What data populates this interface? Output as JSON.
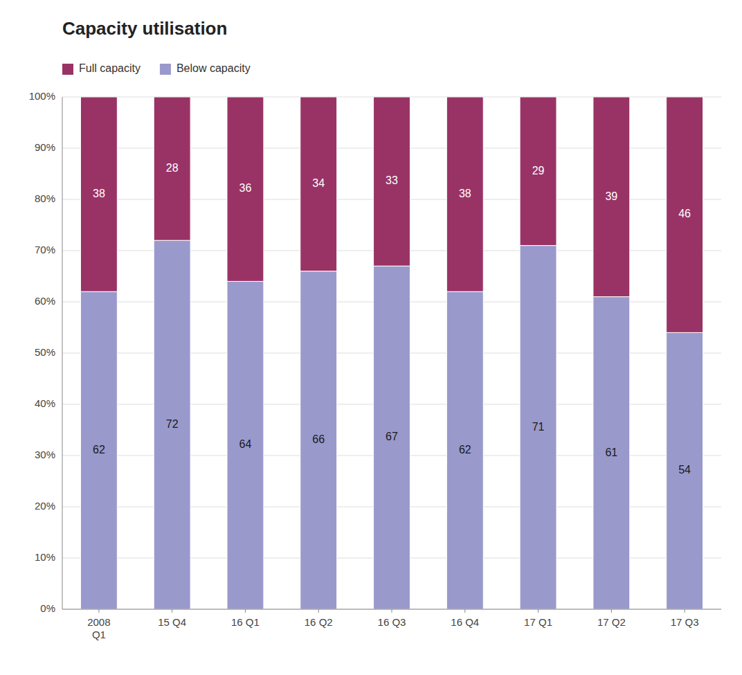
{
  "chart_data": {
    "type": "bar",
    "stacked": true,
    "title": "Capacity utilisation",
    "categories": [
      "2008\nQ1",
      "15 Q4",
      "16 Q1",
      "16 Q2",
      "16 Q3",
      "16 Q4",
      "17 Q1",
      "17 Q2",
      "17 Q3"
    ],
    "series": [
      {
        "name": "Below capacity",
        "color": "#9999cc",
        "values": [
          62,
          72,
          64,
          66,
          67,
          62,
          71,
          61,
          54
        ]
      },
      {
        "name": "Full capacity",
        "color": "#993366",
        "values": [
          38,
          28,
          36,
          34,
          33,
          38,
          29,
          39,
          46
        ]
      }
    ],
    "ylim": [
      0,
      100
    ],
    "yticks": [
      {
        "value": 0,
        "label": "0%"
      },
      {
        "value": 10,
        "label": "10%"
      },
      {
        "value": 20,
        "label": "20%"
      },
      {
        "value": 30,
        "label": "30%"
      },
      {
        "value": 40,
        "label": "40%"
      },
      {
        "value": 50,
        "label": "50%"
      },
      {
        "value": 60,
        "label": "60%"
      },
      {
        "value": 70,
        "label": "70%"
      },
      {
        "value": 80,
        "label": "80%"
      },
      {
        "value": 90,
        "label": "90%"
      },
      {
        "value": 100,
        "label": "100%"
      }
    ],
    "grid": true,
    "legend": "upper left",
    "data_labels": true
  }
}
